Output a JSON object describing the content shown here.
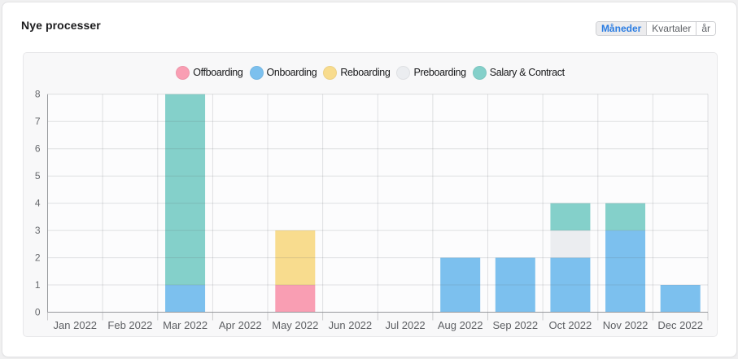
{
  "header": {
    "title": "Nye processer"
  },
  "toolbar": {
    "buttons": [
      {
        "id": "months",
        "label": "Måneder",
        "active": true
      },
      {
        "id": "quarters",
        "label": "Kvartaler",
        "active": false
      },
      {
        "id": "years",
        "label": "år",
        "active": false
      }
    ]
  },
  "colors": {
    "accent_blue": "#2a7ce2",
    "card_bg": "#ffffff",
    "panel_bg": "#f8f8f9",
    "plot_bg": "#fcfcfd",
    "grid_line": "#e3e4e6",
    "axis_line": "#97999d",
    "tick_line": "#cbccce",
    "y_label": "#66686c",
    "x_label": "#5e6064"
  },
  "chart_data": {
    "type": "bar",
    "stacked": true,
    "title": "Nye processer",
    "xlabel": "",
    "ylabel": "",
    "categories": [
      "Jan 2022",
      "Feb 2022",
      "Mar 2022",
      "Apr 2022",
      "May 2022",
      "Jun 2022",
      "Jul 2022",
      "Aug 2022",
      "Sep 2022",
      "Oct 2022",
      "Nov 2022",
      "Dec 2022"
    ],
    "series": [
      {
        "name": "Offboarding",
        "color": "#f99eb3",
        "values": [
          0,
          0,
          0,
          0,
          1,
          0,
          0,
          0,
          0,
          0,
          0,
          0
        ]
      },
      {
        "name": "Onboarding",
        "color": "#7cc0ee",
        "values": [
          0,
          0,
          1,
          0,
          0,
          0,
          0,
          2,
          2,
          2,
          3,
          1
        ]
      },
      {
        "name": "Reboarding",
        "color": "#f8dc8e",
        "values": [
          0,
          0,
          0,
          0,
          2,
          0,
          0,
          0,
          0,
          0,
          0,
          0
        ]
      },
      {
        "name": "Preboarding",
        "color": "#ebedf0",
        "values": [
          0,
          0,
          0,
          0,
          0,
          0,
          0,
          0,
          0,
          1,
          0,
          0
        ]
      },
      {
        "name": "Salary & Contract",
        "color": "#84d0ca",
        "values": [
          0,
          0,
          7,
          0,
          0,
          0,
          0,
          0,
          0,
          1,
          1,
          0
        ]
      }
    ],
    "ylim": [
      0,
      8
    ],
    "yticks": [
      0,
      1,
      2,
      3,
      4,
      5,
      6,
      7,
      8
    ],
    "grid": true,
    "legend_position": "top"
  }
}
